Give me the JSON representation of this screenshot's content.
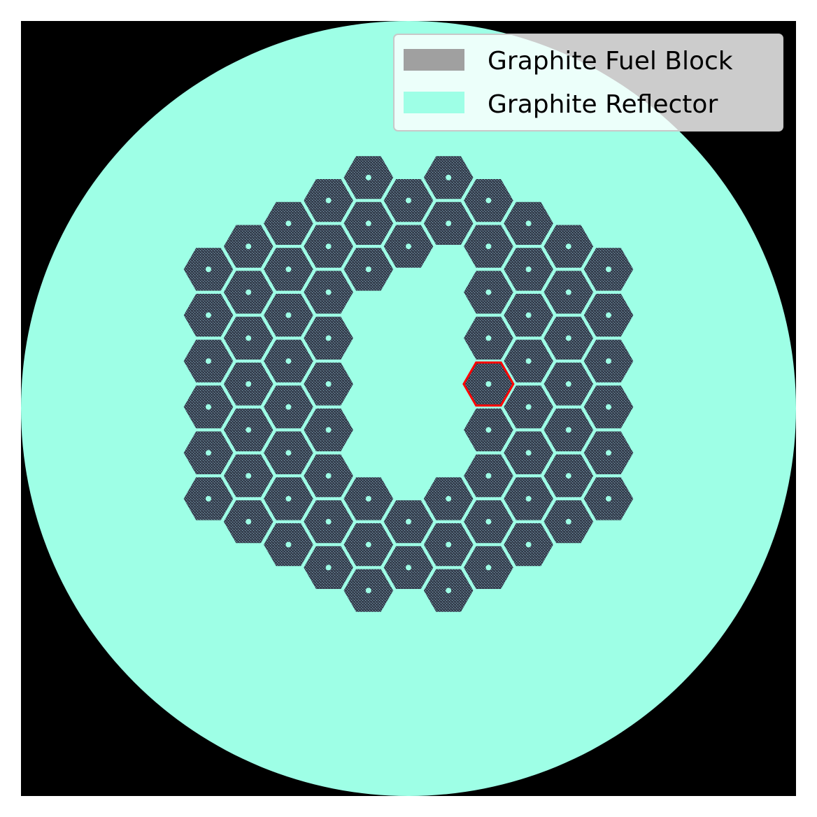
{
  "figure": {
    "background_color": "#000000",
    "reflector_color": "#9effe6",
    "fuel_block_color": "#3c4656",
    "fuel_speckle_color": "#7fa7b8",
    "highlight_color": "#ff0000",
    "block_grid": {
      "rows": [
        [
          -1,
          1
        ],
        [
          -2,
          0,
          2
        ],
        [
          -3,
          -1,
          1,
          3
        ],
        [
          -4,
          -2,
          0,
          2,
          4
        ],
        [
          -5,
          -3,
          -1,
          3,
          5
        ],
        [
          -4,
          -2,
          2,
          4
        ],
        [
          -5,
          -3,
          3,
          5
        ],
        [
          -4,
          -2,
          2,
          4
        ],
        [
          -5,
          -3,
          3,
          5
        ],
        [
          -4,
          -2,
          2,
          4
        ],
        [
          -5,
          -3,
          3,
          5
        ],
        [
          -4,
          -2,
          2,
          4
        ],
        [
          -5,
          -3,
          3,
          5
        ],
        [
          -4,
          -2,
          2,
          4
        ],
        [
          -5,
          -3,
          -1,
          1,
          3,
          5
        ],
        [
          -4,
          -2,
          0,
          2,
          4
        ],
        [
          -3,
          -1,
          1,
          3
        ],
        [
          -2,
          0,
          2
        ],
        [
          -1,
          1
        ]
      ],
      "highlighted_block": {
        "row": 9,
        "col": 2
      }
    }
  },
  "legend": {
    "location": "upper right",
    "items": [
      {
        "label": "Graphite Fuel Block",
        "color": "#a0a0a0"
      },
      {
        "label": "Graphite Reflector",
        "color": "#9effe6"
      }
    ]
  }
}
